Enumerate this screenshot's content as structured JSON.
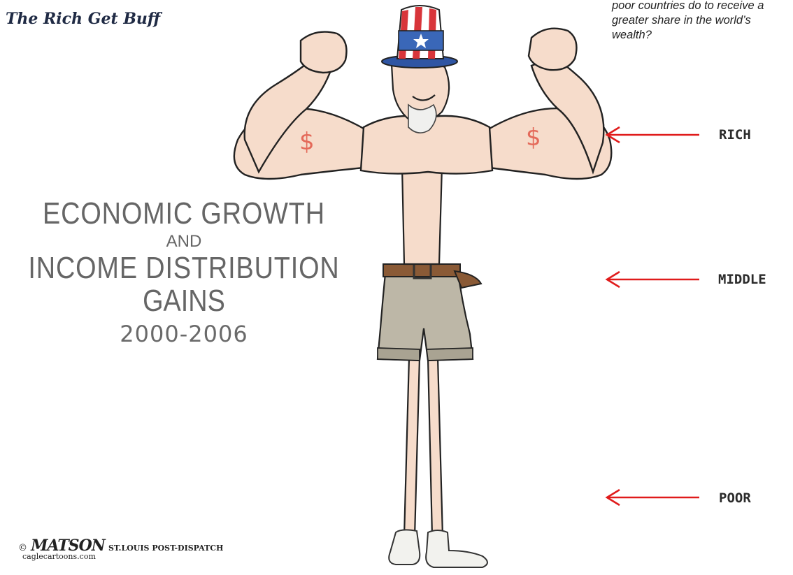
{
  "page": {
    "title": "The Rich Get Buff",
    "question": "poor countries do to receive a greater share in the world’s wealth?"
  },
  "cartoon": {
    "heading": {
      "line1": "ECONOMIC GROWTH",
      "line2": "AND",
      "line3": "INCOME DISTRIBUTION",
      "line4": "GAINS",
      "line5": "2000-2006"
    },
    "labels": {
      "rich": "RICH",
      "middle": "MIDDLE",
      "poor": "POOR"
    },
    "bicep_symbol": "$",
    "credit": {
      "copyright": "©",
      "signature": "MATSON",
      "paper": "ST.LOUIS POST-DISPATCH",
      "site": "caglecartoons.com"
    }
  },
  "colors": {
    "arrow": "#e01b1b",
    "skin": "#f7dcc9",
    "shorts": "#b9b4a5",
    "hat_red": "#d8353a",
    "hat_blue": "#3a67b8",
    "watermark": "#e08a8a"
  },
  "icons": {
    "figure": "uncle-sam-figure",
    "arrow": "left-arrow-icon"
  }
}
